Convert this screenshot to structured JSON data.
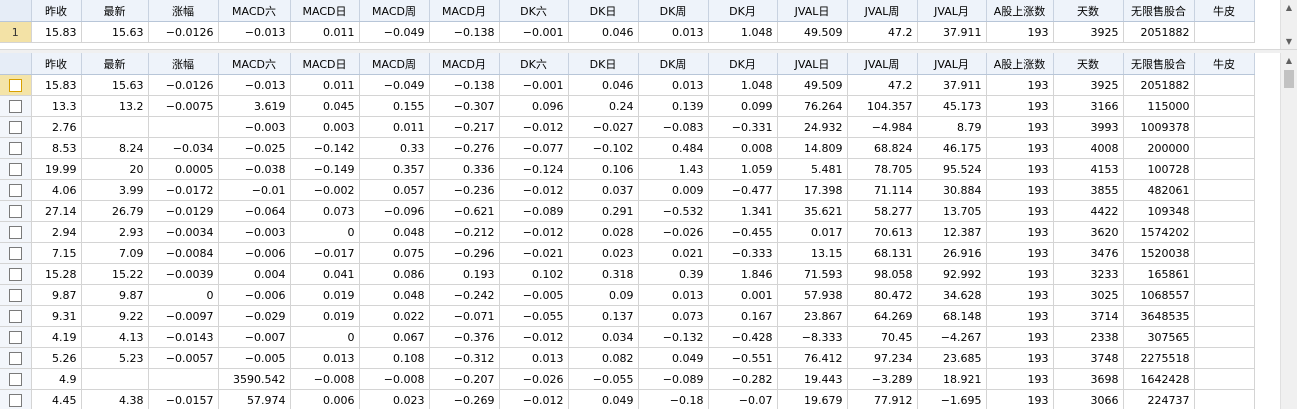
{
  "columns": [
    "昨收",
    "最新",
    "涨幅",
    "MACD六",
    "MACD日",
    "MACD周",
    "MACD月",
    "DK六",
    "DK日",
    "DK周",
    "DK月",
    "JVAL日",
    "JVAL周",
    "JVAL月",
    "A股上涨数",
    "天数",
    "无限售股合",
    "牛皮"
  ],
  "top_grid": {
    "row_number": "1",
    "row": [
      "15.83",
      "15.63",
      "−0.0126",
      "−0.013",
      "0.011",
      "−0.049",
      "−0.138",
      "−0.001",
      "0.046",
      "0.013",
      "1.048",
      "49.509",
      "47.2",
      "37.911",
      "193",
      "3925",
      "2051882",
      ""
    ]
  },
  "main_grid": {
    "rows": [
      [
        "15.83",
        "15.63",
        "−0.0126",
        "−0.013",
        "0.011",
        "−0.049",
        "−0.138",
        "−0.001",
        "0.046",
        "0.013",
        "1.048",
        "49.509",
        "47.2",
        "37.911",
        "193",
        "3925",
        "2051882",
        ""
      ],
      [
        "13.3",
        "13.2",
        "−0.0075",
        "3.619",
        "0.045",
        "0.155",
        "−0.307",
        "0.096",
        "0.24",
        "0.139",
        "0.099",
        "76.264",
        "104.357",
        "45.173",
        "193",
        "3166",
        "115000",
        ""
      ],
      [
        "2.76",
        "",
        "",
        "−0.003",
        "0.003",
        "0.011",
        "−0.217",
        "−0.012",
        "−0.027",
        "−0.083",
        "−0.331",
        "24.932",
        "−4.984",
        "8.79",
        "193",
        "3993",
        "1009378",
        ""
      ],
      [
        "8.53",
        "8.24",
        "−0.034",
        "−0.025",
        "−0.142",
        "0.33",
        "−0.276",
        "−0.077",
        "−0.102",
        "0.484",
        "0.008",
        "14.809",
        "68.824",
        "46.175",
        "193",
        "4008",
        "200000",
        ""
      ],
      [
        "19.99",
        "20",
        "0.0005",
        "−0.038",
        "−0.149",
        "0.357",
        "0.336",
        "−0.124",
        "0.106",
        "1.43",
        "1.059",
        "5.481",
        "78.705",
        "95.524",
        "193",
        "4153",
        "100728",
        ""
      ],
      [
        "4.06",
        "3.99",
        "−0.0172",
        "−0.01",
        "−0.002",
        "0.057",
        "−0.236",
        "−0.012",
        "0.037",
        "0.009",
        "−0.477",
        "17.398",
        "71.114",
        "30.884",
        "193",
        "3855",
        "482061",
        ""
      ],
      [
        "27.14",
        "26.79",
        "−0.0129",
        "−0.064",
        "0.073",
        "−0.096",
        "−0.621",
        "−0.089",
        "0.291",
        "−0.532",
        "1.341",
        "35.621",
        "58.277",
        "13.705",
        "193",
        "4422",
        "109348",
        ""
      ],
      [
        "2.94",
        "2.93",
        "−0.0034",
        "−0.003",
        "0",
        "0.048",
        "−0.212",
        "−0.012",
        "0.028",
        "−0.026",
        "−0.455",
        "0.017",
        "70.613",
        "12.387",
        "193",
        "3620",
        "1574202",
        ""
      ],
      [
        "7.15",
        "7.09",
        "−0.0084",
        "−0.006",
        "−0.017",
        "0.075",
        "−0.296",
        "−0.021",
        "0.023",
        "0.021",
        "−0.333",
        "13.15",
        "68.131",
        "26.916",
        "193",
        "3476",
        "1520038",
        ""
      ],
      [
        "15.28",
        "15.22",
        "−0.0039",
        "0.004",
        "0.041",
        "0.086",
        "0.193",
        "0.102",
        "0.318",
        "0.39",
        "1.846",
        "71.593",
        "98.058",
        "92.992",
        "193",
        "3233",
        "165861",
        ""
      ],
      [
        "9.87",
        "9.87",
        "0",
        "−0.006",
        "0.019",
        "0.048",
        "−0.242",
        "−0.005",
        "0.09",
        "0.013",
        "0.001",
        "57.938",
        "80.472",
        "34.628",
        "193",
        "3025",
        "1068557",
        ""
      ],
      [
        "9.31",
        "9.22",
        "−0.0097",
        "−0.029",
        "0.019",
        "0.022",
        "−0.071",
        "−0.055",
        "0.137",
        "0.073",
        "0.167",
        "23.867",
        "64.269",
        "68.148",
        "193",
        "3714",
        "3648535",
        ""
      ],
      [
        "4.19",
        "4.13",
        "−0.0143",
        "−0.007",
        "0",
        "0.067",
        "−0.376",
        "−0.012",
        "0.034",
        "−0.132",
        "−0.428",
        "−8.333",
        "70.45",
        "−4.267",
        "193",
        "2338",
        "307565",
        ""
      ],
      [
        "5.26",
        "5.23",
        "−0.0057",
        "−0.005",
        "0.013",
        "0.108",
        "−0.312",
        "0.013",
        "0.082",
        "0.049",
        "−0.551",
        "76.412",
        "97.234",
        "23.685",
        "193",
        "3748",
        "2275518",
        ""
      ],
      [
        "4.9",
        "",
        "",
        "3590.542",
        "−0.008",
        "−0.008",
        "−0.207",
        "−0.026",
        "−0.055",
        "−0.089",
        "−0.282",
        "19.443",
        "−3.289",
        "18.921",
        "193",
        "3698",
        "1642428",
        ""
      ],
      [
        "4.45",
        "4.38",
        "−0.0157",
        "57.974",
        "0.006",
        "0.023",
        "−0.269",
        "−0.012",
        "0.049",
        "−0.18",
        "−0.07",
        "19.679",
        "77.912",
        "−1.695",
        "193",
        "3066",
        "224737",
        ""
      ]
    ]
  },
  "icons": {
    "scroll_up": "▲",
    "scroll_down": "▼"
  }
}
